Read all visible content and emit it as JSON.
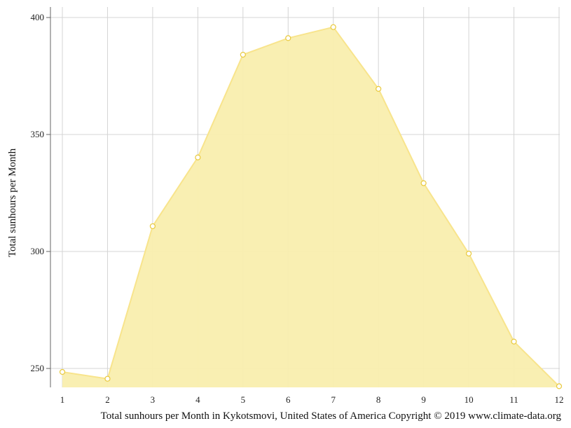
{
  "chart_data": {
    "type": "area",
    "x": [
      1,
      2,
      3,
      4,
      5,
      6,
      7,
      8,
      9,
      10,
      11,
      12
    ],
    "x_tick_labels": [
      "1",
      "2",
      "3",
      "4",
      "5",
      "6",
      "7",
      "8",
      "9",
      "10",
      "11",
      "12"
    ],
    "values": [
      248.5,
      245.6,
      310.8,
      340.2,
      384.1,
      391.2,
      395.9,
      369.5,
      329.2,
      299.1,
      261.5,
      242.4
    ],
    "y_ticks": [
      250,
      300,
      350,
      400
    ],
    "y_tick_labels": [
      "250",
      "300",
      "350",
      "400"
    ],
    "ylim": [
      242,
      404
    ],
    "xlim": [
      1,
      12
    ],
    "ylabel": "Total sunhours per Month",
    "xlabel": "",
    "caption": "Total sunhours per Month in Kykotsmovi, United States of America Copyright © 2019 www.climate-data.org",
    "grid": true,
    "legend": "none",
    "colors": {
      "fill": "#f9eeae",
      "line": "#f8e48c",
      "marker_stroke": "#e9c93c",
      "marker_fill": "#ffffff",
      "grid": "#d4d4d4",
      "axis": "#666666"
    }
  }
}
